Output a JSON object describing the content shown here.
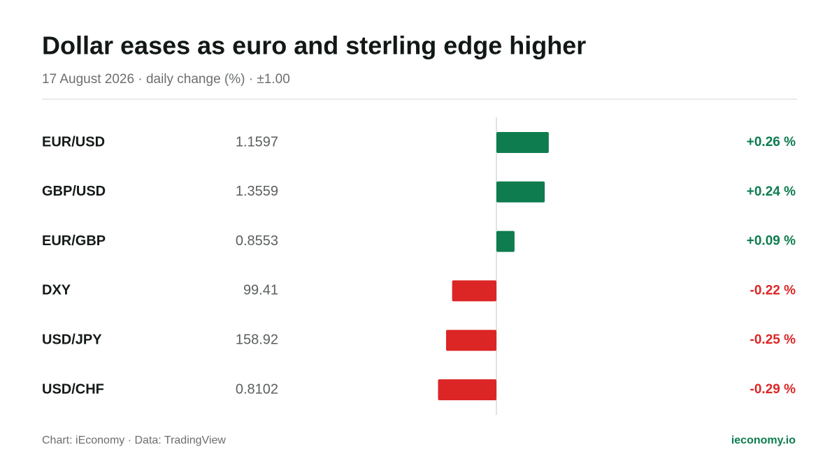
{
  "chart_data": {
    "type": "diverging-bar",
    "title": "Dollar eases as euro and sterling edge higher",
    "subtitle": "17 August 2026 · daily change (%) · ±1.00",
    "categories": [
      "EUR/USD",
      "GBP/USD",
      "EUR/GBP",
      "DXY",
      "USD/JPY",
      "USD/CHF"
    ],
    "rates": [
      "1.1597",
      "1.3559",
      "0.8553",
      "99.41",
      "158.92",
      "0.8102"
    ],
    "values": [
      0.26,
      0.24,
      0.09,
      -0.22,
      -0.25,
      -0.29
    ],
    "value_labels": [
      "+0.26 %",
      "+0.24 %",
      "+0.09 %",
      "-0.22 %",
      "-0.25 %",
      "-0.29 %"
    ],
    "positive_color": "#0e7c4f",
    "negative_color": "#dc2626",
    "xlim": [
      -1,
      1
    ],
    "source": "Chart: iEconomy · Data: TradingView",
    "site": "ieconomy.io"
  }
}
